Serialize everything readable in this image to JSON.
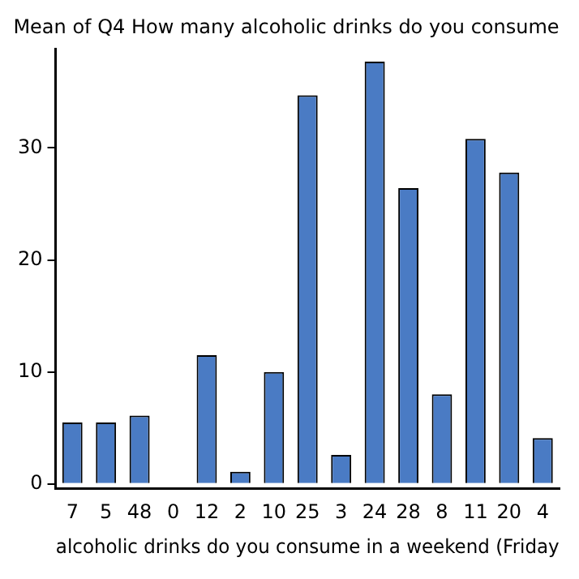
{
  "chart_data": {
    "type": "bar",
    "title": "Mean of Q4 How many alcoholic drinks do you consume",
    "xlabel": "alcoholic drinks do you consume in a weekend (Friday",
    "categories": [
      "7",
      "5",
      "48",
      "0",
      "12",
      "2",
      "10",
      "25",
      "3",
      "24",
      "28",
      "8",
      "11",
      "20",
      "4"
    ],
    "values": [
      5.5,
      5.5,
      6.1,
      0,
      11.5,
      1.1,
      10,
      34.7,
      2.6,
      37.7,
      26.4,
      8,
      30.8,
      27.8,
      4.1
    ],
    "color": "#4a7bc4",
    "ylim": [
      -0.4,
      38.8
    ],
    "yticks": [
      0,
      10,
      20,
      30
    ],
    "grid": false,
    "legend": false
  }
}
